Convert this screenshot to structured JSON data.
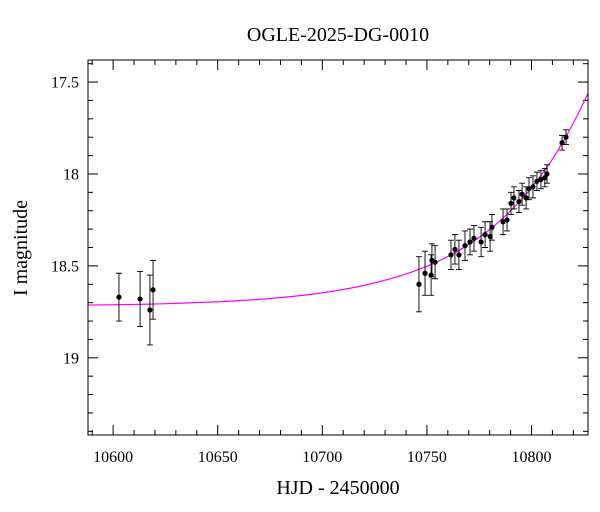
{
  "chart_data": {
    "type": "scatter",
    "title": "OGLE-2025-DG-0010",
    "xlabel": "HJD - 2450000",
    "ylabel": "I magnitude",
    "xlim": [
      10588,
      10827
    ],
    "ylim": [
      17.38,
      19.42
    ],
    "y_inverted": true,
    "x_ticks": [
      10600,
      10650,
      10700,
      10750,
      10800
    ],
    "x_minor_step": 10,
    "y_ticks": [
      17.5,
      18,
      18.5,
      19
    ],
    "y_minor_step": 0.1,
    "grid": false,
    "series": [
      {
        "type": "scatter",
        "color": "#000000",
        "x": [
          10602.8,
          10612.9,
          10617.6,
          10619.1,
          10746.2,
          10749.1,
          10752.0,
          10752.4,
          10753.9,
          10761.5,
          10763.4,
          10765.3,
          10768.2,
          10770.6,
          10772.5,
          10775.9,
          10777.8,
          10780.2,
          10781.1,
          10786.4,
          10788.3,
          10790.2,
          10791.6,
          10794.0,
          10795.5,
          10797.4,
          10798.8,
          10800.7,
          10802.6,
          10804.5,
          10806.4,
          10807.4,
          10814.6,
          10816.5
        ],
        "y": [
          18.67,
          18.68,
          18.74,
          18.63,
          18.6,
          18.54,
          18.55,
          18.47,
          18.48,
          18.44,
          18.41,
          18.44,
          18.39,
          18.37,
          18.35,
          18.37,
          18.33,
          18.34,
          18.29,
          18.26,
          18.25,
          18.16,
          18.13,
          18.15,
          18.11,
          18.13,
          18.08,
          18.07,
          18.04,
          18.03,
          18.02,
          18.0,
          17.83,
          17.8
        ],
        "yerr": [
          0.13,
          0.15,
          0.19,
          0.16,
          0.15,
          0.12,
          0.11,
          0.09,
          0.09,
          0.08,
          0.08,
          0.08,
          0.08,
          0.07,
          0.07,
          0.08,
          0.07,
          0.08,
          0.07,
          0.07,
          0.06,
          0.06,
          0.06,
          0.06,
          0.06,
          0.06,
          0.06,
          0.06,
          0.05,
          0.05,
          0.05,
          0.05,
          0.04,
          0.04
        ]
      },
      {
        "type": "line",
        "color": "#ff00ff",
        "x": [
          10588,
          10610,
          10630,
          10650,
          10670,
          10690,
          10705,
          10720,
          10735,
          10745,
          10755,
          10765,
          10775,
          10785,
          10795,
          10803,
          10810,
          10816,
          10822,
          10827
        ],
        "y": [
          18.713,
          18.71,
          18.704,
          18.695,
          18.682,
          18.661,
          18.638,
          18.606,
          18.562,
          18.524,
          18.477,
          18.418,
          18.345,
          18.254,
          18.141,
          18.031,
          17.918,
          17.806,
          17.679,
          17.56
        ]
      }
    ]
  }
}
